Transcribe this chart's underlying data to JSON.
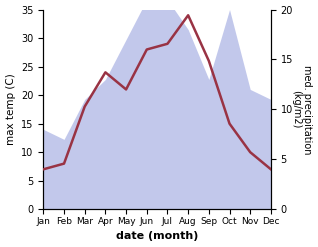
{
  "months": [
    "Jan",
    "Feb",
    "Mar",
    "Apr",
    "May",
    "Jun",
    "Jul",
    "Aug",
    "Sep",
    "Oct",
    "Nov",
    "Dec"
  ],
  "temperature": [
    7,
    8,
    18,
    24,
    21,
    28,
    29,
    34,
    26,
    15,
    10,
    7
  ],
  "precipitation": [
    8,
    7,
    11,
    13,
    17,
    21,
    21,
    18,
    13,
    20,
    12,
    11
  ],
  "temp_color": "#993344",
  "precip_fill_color": "#b8bfe8",
  "title": "",
  "xlabel": "date (month)",
  "ylabel_left": "max temp (C)",
  "ylabel_right": "med. precipitation\n(kg/m2)",
  "ylim_left": [
    0,
    35
  ],
  "ylim_right": [
    0,
    20
  ],
  "background_color": "#ffffff",
  "linewidth": 1.8
}
